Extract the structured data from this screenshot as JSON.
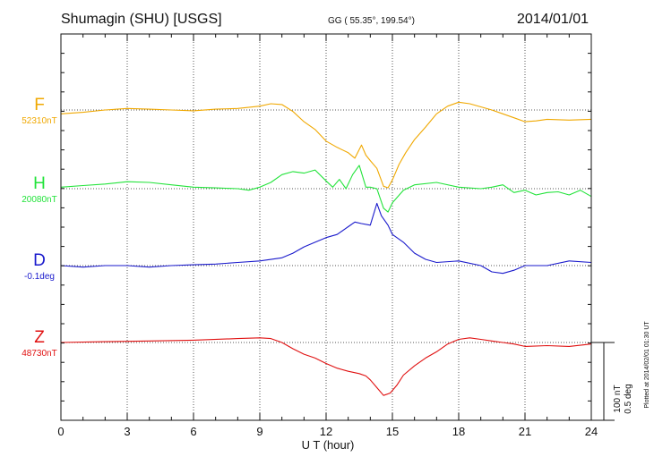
{
  "header": {
    "station": "Shumagin (SHU)  [USGS]",
    "coords": "GG ( 55.35°, 199.54°)",
    "date": "2014/01/01"
  },
  "scale": {
    "nt_label": "100 nT",
    "deg_label": "0.5 deg",
    "plotted": "Plotted at 2014/02/01 01:30 UT"
  },
  "chart_data": {
    "type": "line",
    "title": "Shumagin (SHU)  [USGS]",
    "xlabel": "U T (hour)",
    "ylabel": "",
    "xlim": [
      0,
      24
    ],
    "xticks": [
      "0",
      "3",
      "6",
      "9",
      "12",
      "15",
      "18",
      "21",
      "24"
    ],
    "grid": true,
    "scale_bar": {
      "nT": 100,
      "deg": 0.5
    },
    "series": [
      {
        "name": "F",
        "baseline": "52310nT",
        "color": "#f0a800",
        "x": [
          0,
          1,
          2,
          3,
          4,
          5,
          6,
          7,
          8,
          9,
          9.5,
          10,
          10.5,
          11,
          11.5,
          12,
          12.5,
          13,
          13.3,
          13.6,
          13.8,
          14,
          14.3,
          14.6,
          14.8,
          15,
          15.3,
          15.6,
          16,
          16.5,
          17,
          17.5,
          18,
          18.5,
          19,
          19.5,
          20,
          20.5,
          21,
          21.5,
          22,
          23,
          24
        ],
        "values": [
          -5,
          -3,
          0,
          2,
          1,
          0,
          -1,
          1,
          2,
          5,
          8,
          7,
          -2,
          -15,
          -25,
          -40,
          -48,
          -55,
          -62,
          -45,
          -58,
          -65,
          -75,
          -98,
          -100,
          -90,
          -70,
          -55,
          -38,
          -22,
          -5,
          5,
          10,
          8,
          4,
          0,
          -5,
          -10,
          -15,
          -14,
          -12,
          -13,
          -12
        ]
      },
      {
        "name": "H",
        "baseline": "20080nT",
        "color": "#22e33a",
        "x": [
          0,
          1,
          2,
          3,
          4,
          5,
          6,
          7,
          8,
          8.5,
          9,
          9.5,
          10,
          10.5,
          11,
          11.5,
          12,
          12.3,
          12.6,
          12.9,
          13.2,
          13.5,
          13.8,
          14,
          14.3,
          14.6,
          14.8,
          15,
          15.5,
          16,
          17,
          18,
          19,
          19.5,
          20,
          20.5,
          21,
          21.5,
          22,
          22.5,
          23,
          23.5,
          24
        ],
        "values": [
          2,
          4,
          6,
          9,
          8,
          5,
          2,
          1,
          0,
          -2,
          2,
          8,
          18,
          22,
          20,
          24,
          10,
          2,
          12,
          0,
          18,
          30,
          2,
          2,
          0,
          -25,
          -30,
          -18,
          -2,
          5,
          8,
          2,
          0,
          2,
          5,
          -5,
          -2,
          -8,
          -5,
          -4,
          -8,
          -2,
          -10
        ]
      },
      {
        "name": "D",
        "baseline": "-0.1deg",
        "color": "#1a1acc",
        "x": [
          0,
          1,
          2,
          3,
          4,
          5,
          6,
          7,
          8,
          9,
          10,
          10.5,
          11,
          11.5,
          12,
          12.5,
          13,
          13.3,
          13.6,
          14,
          14.3,
          14.5,
          14.8,
          15,
          15.5,
          16,
          16.5,
          17,
          18,
          19,
          19.5,
          20,
          20.5,
          21,
          22,
          23,
          24
        ],
        "values": [
          0.0,
          -0.01,
          0.0,
          0.0,
          -0.01,
          0.0,
          0.005,
          0.01,
          0.02,
          0.03,
          0.05,
          0.08,
          0.12,
          0.15,
          0.18,
          0.2,
          0.25,
          0.28,
          0.27,
          0.26,
          0.4,
          0.32,
          0.26,
          0.2,
          0.15,
          0.08,
          0.04,
          0.02,
          0.03,
          0.0,
          -0.04,
          -0.05,
          -0.03,
          0.0,
          0.0,
          0.03,
          0.02
        ]
      },
      {
        "name": "Z",
        "baseline": "48730nT",
        "color": "#e01010",
        "x": [
          0,
          2,
          4,
          6,
          8,
          9,
          9.5,
          10,
          10.5,
          11,
          11.5,
          12,
          12.5,
          13,
          13.5,
          13.8,
          14,
          14.3,
          14.6,
          14.9,
          15.2,
          15.5,
          16,
          16.5,
          17,
          17.5,
          18,
          18.5,
          19,
          19.5,
          20,
          20.5,
          21,
          22,
          23,
          24
        ],
        "values": [
          0,
          1,
          2,
          3,
          5,
          6,
          5,
          0,
          -8,
          -15,
          -20,
          -27,
          -33,
          -37,
          -40,
          -43,
          -48,
          -58,
          -68,
          -65,
          -55,
          -42,
          -30,
          -20,
          -12,
          -2,
          4,
          6,
          4,
          2,
          0,
          -2,
          -5,
          -4,
          -5,
          -2
        ]
      }
    ]
  }
}
